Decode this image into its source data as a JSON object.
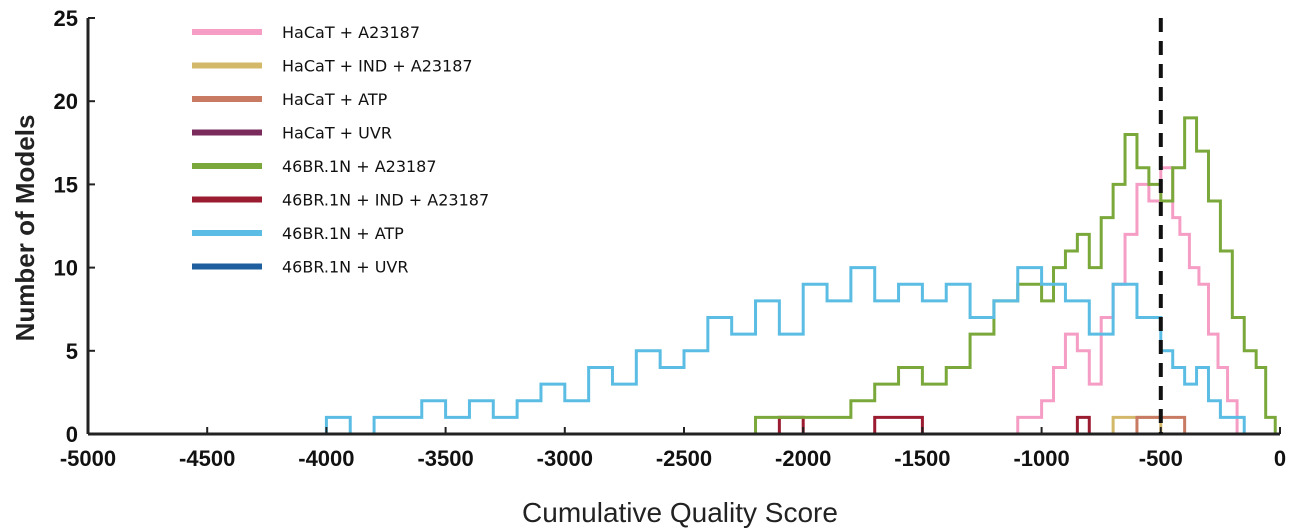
{
  "chart_data": {
    "type": "line",
    "title": "",
    "xlabel": "Cumulative Quality Score",
    "ylabel": "Number of Models",
    "xlim": [
      -5000,
      0
    ],
    "ylim": [
      0,
      25
    ],
    "xticks": [
      -5000,
      -4500,
      -4000,
      -3500,
      -3000,
      -2500,
      -2000,
      -1500,
      -1000,
      -500,
      0
    ],
    "yticks": [
      0,
      5,
      10,
      15,
      20,
      25
    ],
    "threshold_x": -500,
    "threshold_style": "dashed black vertical line",
    "legend_position": "top-left",
    "series": [
      {
        "name": "HaCaT + A23187",
        "color": "#f59dc4",
        "points": [
          [
            -1260,
            0
          ],
          [
            -1100,
            1
          ],
          [
            -1000,
            2
          ],
          [
            -950,
            4
          ],
          [
            -900,
            6
          ],
          [
            -850,
            5
          ],
          [
            -800,
            3
          ],
          [
            -750,
            7
          ],
          [
            -700,
            9
          ],
          [
            -650,
            12
          ],
          [
            -600,
            15
          ],
          [
            -550,
            14
          ],
          [
            -500,
            16
          ],
          [
            -450,
            13
          ],
          [
            -420,
            12
          ],
          [
            -380,
            10
          ],
          [
            -340,
            9
          ],
          [
            -300,
            6
          ],
          [
            -260,
            4
          ],
          [
            -220,
            2
          ],
          [
            -180,
            0
          ]
        ]
      },
      {
        "name": "HaCaT + IND + A23187",
        "color": "#d4b86a",
        "points": [
          [
            -1300,
            0
          ],
          [
            -1000,
            0
          ],
          [
            -700,
            1
          ],
          [
            -500,
            0
          ],
          [
            -300,
            0
          ]
        ]
      },
      {
        "name": "HaCaT + ATP",
        "color": "#c87a62",
        "points": [
          [
            -1200,
            0
          ],
          [
            -900,
            0
          ],
          [
            -600,
            1
          ],
          [
            -400,
            0
          ]
        ]
      },
      {
        "name": "HaCaT + UVR",
        "color": "#7b2b5b",
        "points": [
          [
            -1000,
            0
          ],
          [
            -700,
            0
          ],
          [
            -500,
            0
          ]
        ]
      },
      {
        "name": "46BR.1N + A23187",
        "color": "#7aa83a",
        "points": [
          [
            -3200,
            0
          ],
          [
            -2300,
            0
          ],
          [
            -2200,
            1
          ],
          [
            -2000,
            1
          ],
          [
            -1800,
            2
          ],
          [
            -1700,
            3
          ],
          [
            -1600,
            4
          ],
          [
            -1500,
            3
          ],
          [
            -1400,
            4
          ],
          [
            -1300,
            6
          ],
          [
            -1200,
            8
          ],
          [
            -1100,
            9
          ],
          [
            -1000,
            8
          ],
          [
            -950,
            10
          ],
          [
            -900,
            11
          ],
          [
            -850,
            12
          ],
          [
            -800,
            10
          ],
          [
            -750,
            13
          ],
          [
            -700,
            15
          ],
          [
            -650,
            18
          ],
          [
            -600,
            16
          ],
          [
            -550,
            15
          ],
          [
            -500,
            14
          ],
          [
            -450,
            16
          ],
          [
            -400,
            19
          ],
          [
            -350,
            17
          ],
          [
            -300,
            14
          ],
          [
            -250,
            11
          ],
          [
            -200,
            7
          ],
          [
            -150,
            5
          ],
          [
            -100,
            4
          ],
          [
            -60,
            1
          ],
          [
            -20,
            0
          ]
        ]
      },
      {
        "name": "46BR.1N + IND + A23187",
        "color": "#9b1b30",
        "points": [
          [
            -2200,
            0
          ],
          [
            -2100,
            1
          ],
          [
            -2000,
            0
          ],
          [
            -1700,
            1
          ],
          [
            -1500,
            0
          ],
          [
            -850,
            1
          ],
          [
            -800,
            0
          ]
        ]
      },
      {
        "name": "46BR.1N + ATP",
        "color": "#5bbde4",
        "points": [
          [
            -4050,
            0
          ],
          [
            -4000,
            1
          ],
          [
            -3900,
            0
          ],
          [
            -3800,
            1
          ],
          [
            -3700,
            1
          ],
          [
            -3600,
            2
          ],
          [
            -3500,
            1
          ],
          [
            -3400,
            2
          ],
          [
            -3300,
            1
          ],
          [
            -3200,
            2
          ],
          [
            -3100,
            3
          ],
          [
            -3000,
            2
          ],
          [
            -2900,
            4
          ],
          [
            -2800,
            3
          ],
          [
            -2700,
            5
          ],
          [
            -2600,
            4
          ],
          [
            -2500,
            5
          ],
          [
            -2400,
            7
          ],
          [
            -2300,
            6
          ],
          [
            -2200,
            8
          ],
          [
            -2100,
            6
          ],
          [
            -2000,
            9
          ],
          [
            -1900,
            8
          ],
          [
            -1800,
            10
          ],
          [
            -1700,
            8
          ],
          [
            -1600,
            9
          ],
          [
            -1500,
            8
          ],
          [
            -1400,
            9
          ],
          [
            -1300,
            7
          ],
          [
            -1200,
            8
          ],
          [
            -1100,
            10
          ],
          [
            -1000,
            9
          ],
          [
            -900,
            8
          ],
          [
            -800,
            6
          ],
          [
            -700,
            9
          ],
          [
            -600,
            7
          ],
          [
            -500,
            5
          ],
          [
            -450,
            4
          ],
          [
            -400,
            3
          ],
          [
            -350,
            4
          ],
          [
            -300,
            2
          ],
          [
            -250,
            1
          ],
          [
            -200,
            1
          ],
          [
            -150,
            0
          ]
        ]
      },
      {
        "name": "46BR.1N + UVR",
        "color": "#1f5fa0",
        "points": [
          [
            -1500,
            0
          ],
          [
            -1200,
            0
          ],
          [
            -900,
            0
          ],
          [
            -600,
            0
          ],
          [
            -300,
            0
          ]
        ]
      }
    ]
  }
}
